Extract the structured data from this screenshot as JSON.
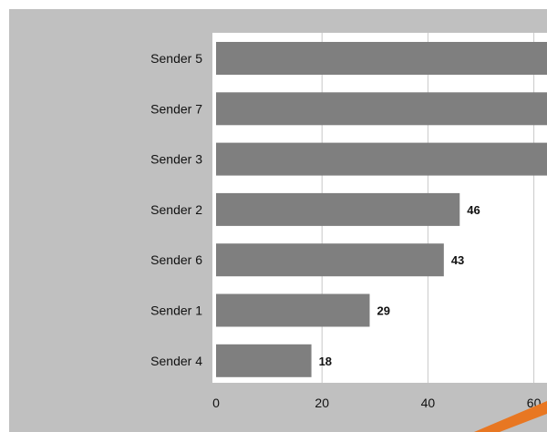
{
  "chart_data": {
    "type": "bar",
    "orientation": "horizontal",
    "categories": [
      "Sender 5",
      "Sender 7",
      "Sender 3",
      "Sender 2",
      "Sender 6",
      "Sender 1",
      "Sender 4"
    ],
    "values": [
      null,
      null,
      null,
      46,
      43,
      29,
      18
    ],
    "data_labels": [
      "",
      "",
      "",
      "46",
      "43",
      "29",
      "18"
    ],
    "xticks": [
      0,
      20,
      40,
      60
    ],
    "xlim": [
      0,
      62
    ],
    "grid": true,
    "title": "",
    "xlabel": "",
    "ylabel": ""
  },
  "colors": {
    "panel": "#c0c0c0",
    "plot_area": "#ffffff",
    "bar": "#7f7f7f",
    "grid": "#c8c8c8",
    "accent": "#e87722"
  }
}
